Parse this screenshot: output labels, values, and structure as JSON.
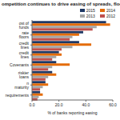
{
  "chart_data": {
    "type": "bar",
    "orientation": "horizontal",
    "title": "ompetition continues to drive easing of spreads, floors",
    "x_label": "% of banks reporting easing",
    "categories": [
      "ost of funds",
      "rate floors",
      "credit lines",
      "credit lines",
      "Covenants",
      "riskier loans",
      "n maturity",
      "requirements"
    ],
    "series": [
      {
        "name": "2015",
        "color": "#1f3864",
        "values": [
          55,
          38,
          35,
          20,
          18,
          15,
          10,
          6
        ]
      },
      {
        "name": "2014",
        "color": "#e46c0a",
        "values": [
          58,
          35,
          44,
          22,
          28,
          18,
          12,
          8
        ]
      },
      {
        "name": "2013",
        "color": "#a6a6a6",
        "values": [
          48,
          30,
          30,
          18,
          15,
          12,
          8,
          5
        ]
      },
      {
        "name": "2012",
        "color": "#c0504d",
        "values": [
          45,
          28,
          22,
          15,
          12,
          10,
          6,
          4
        ]
      }
    ],
    "xlim": [
      0,
      60
    ],
    "xticks": [
      {
        "value": 0,
        "label": "0.0"
      },
      {
        "value": 20,
        "label": "20.0"
      },
      {
        "value": 40,
        "label": "40.0"
      },
      {
        "value": 60,
        "label": "60.0"
      }
    ],
    "grid": false,
    "legend": "top-right"
  }
}
